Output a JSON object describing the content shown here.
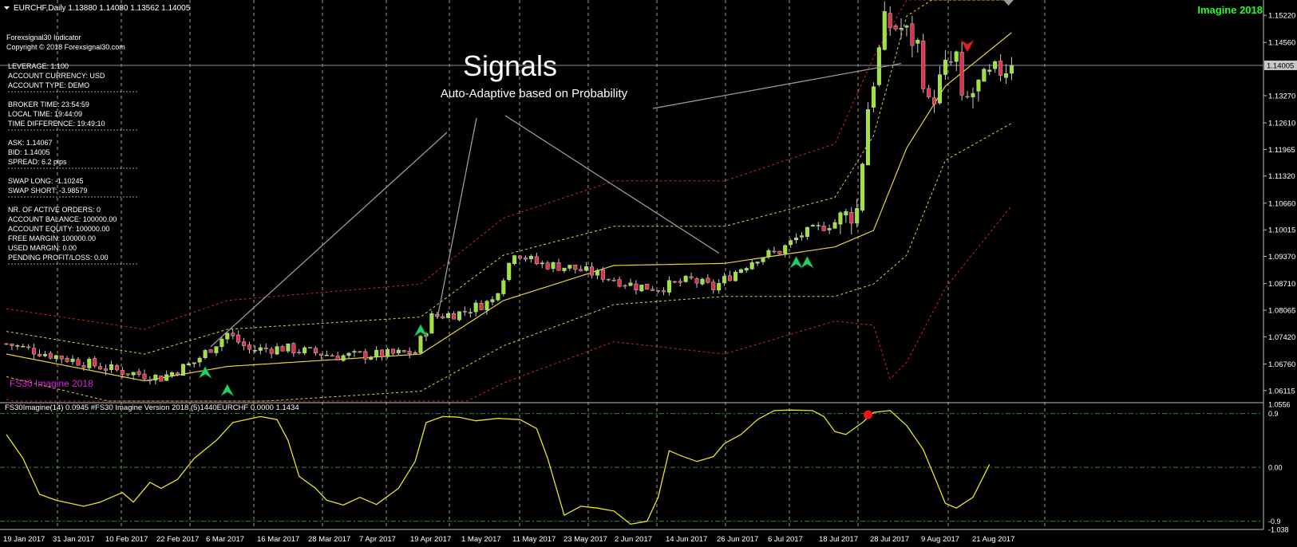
{
  "colors": {
    "background": "#000000",
    "grid": "#c8c8a0",
    "bull": "#9be632",
    "bear": "#e0304a",
    "basis": "#e6d23c",
    "inner_band": "#e6d23c",
    "outer_band": "#d02020",
    "signal_up": "#20d060",
    "signal_down": "#e02020",
    "osc": "#e6e61e",
    "osc_level": "#2e8b2e",
    "annotation_line": "#9a9a9a",
    "badge": "#22ff22",
    "indicator_label": "#e020e0",
    "price_marker_bg": "#c8c8c8"
  },
  "header": {
    "symbol": "EURCHF,Daily",
    "ohlc": "1.13880 1.14080 1.13562 1.14005",
    "badge": "Imagine 2018"
  },
  "info_panel": {
    "title": "Forexsignal30 Indicator",
    "copyright": "Copyright © 2018 Forexsignal30.com",
    "groups": [
      [
        "LEVERAGE:   1:100",
        "ACCOUNT CURRENCY:   USD",
        "ACCOUNT TYPE:   DEMO"
      ],
      [
        "BROKER TIME:   23:54:59",
        "LOCAL TIME:   19:44:09",
        "TIME DIFFERENCE:   19:49:10"
      ],
      [
        "ASK:   1.14067",
        "BID:   1.14005",
        "SPREAD:   6.2 pips"
      ],
      [
        "SWAP LONG:   -1.10245",
        "SWAP SHORT:   -3.98579"
      ],
      [
        "NR. OF ACTIVE ORDERS:   0",
        "ACCOUNT BALANCE:   100000.00",
        "ACCOUNT EQUITY:   100000.00",
        "FREE MARGIN:   100000.00",
        "USED MARGIN:   0.00",
        "PENDING PROFIT/LOSS:   0.00"
      ]
    ]
  },
  "annotation": {
    "title": "Signals",
    "subtitle": "Auto-Adaptive based on Probability"
  },
  "indicator_label": "FS30 Imagine 2018",
  "sub_header": "FS30Imagine(14) 0.0945  #FS30 Imagine Version 2018 (5)1440EURCHF 0.0000 1.1434",
  "chart_data": [
    {
      "type": "candlestick",
      "symbol": "EURCHF",
      "timeframe": "Daily",
      "ylim": [
        1.0586,
        1.1559
      ],
      "y_ticks": [
        "1.15220",
        "1.14560",
        "1.13270",
        "1.12610",
        "1.11965",
        "1.11320",
        "1.10660",
        "1.10015",
        "1.09370",
        "1.08710",
        "1.08065",
        "1.07420",
        "1.06760",
        "1.06115"
      ],
      "current_price": "1.14005",
      "x_ticks": [
        "19 Jan 2017",
        "31 Jan 2017",
        "10 Feb 2017",
        "22 Feb 2017",
        "6 Mar 2017",
        "16 Mar 2017",
        "28 Mar 2017",
        "7 Apr 2017",
        "19 Apr 2017",
        "1 May 2017",
        "11 May 2017",
        "23 May 2017",
        "2 Jun 2017",
        "14 Jun 2017",
        "26 Jun 2017",
        "6 Jul 2017",
        "18 Jul 2017",
        "28 Jul 2017",
        "9 Aug 2017",
        "21 Aug 2017"
      ],
      "anchors": [
        [
          0,
          1.0725
        ],
        [
          10,
          1.0692
        ],
        [
          20,
          1.066
        ],
        [
          28,
          1.0643
        ],
        [
          34,
          1.068
        ],
        [
          40,
          1.075
        ],
        [
          44,
          1.071
        ],
        [
          50,
          1.0715
        ],
        [
          60,
          1.0695
        ],
        [
          70,
          1.07
        ],
        [
          74,
          1.0705
        ],
        [
          77,
          1.079
        ],
        [
          82,
          1.08
        ],
        [
          88,
          1.083
        ],
        [
          92,
          1.095
        ],
        [
          96,
          1.092
        ],
        [
          102,
          1.091
        ],
        [
          108,
          1.089
        ],
        [
          114,
          1.0865
        ],
        [
          118,
          1.086
        ],
        [
          124,
          1.088
        ],
        [
          128,
          1.086
        ],
        [
          132,
          1.09
        ],
        [
          136,
          1.0935
        ],
        [
          140,
          1.095
        ],
        [
          144,
          1.099
        ],
        [
          150,
          1.102
        ],
        [
          154,
          1.105
        ],
        [
          156,
          1.13
        ],
        [
          159,
          1.15
        ],
        [
          162,
          1.149
        ],
        [
          165,
          1.145
        ],
        [
          167,
          1.13
        ],
        [
          170,
          1.139
        ],
        [
          172,
          1.142
        ],
        [
          173,
          1.13
        ],
        [
          176,
          1.135
        ],
        [
          180,
          1.139
        ],
        [
          182,
          1.14
        ]
      ],
      "bands": {
        "basis": [
          [
            0,
            1.07
          ],
          [
            25,
            1.0635
          ],
          [
            40,
            1.067
          ],
          [
            75,
            1.07
          ],
          [
            90,
            1.083
          ],
          [
            110,
            1.0915
          ],
          [
            130,
            1.092
          ],
          [
            150,
            1.096
          ],
          [
            157,
            1.1
          ],
          [
            163,
            1.12
          ],
          [
            170,
            1.135
          ],
          [
            182,
            1.148
          ]
        ],
        "inner_upper": [
          [
            0,
            1.0755
          ],
          [
            25,
            1.07
          ],
          [
            40,
            1.076
          ],
          [
            75,
            1.079
          ],
          [
            90,
            1.094
          ],
          [
            110,
            1.101
          ],
          [
            130,
            1.101
          ],
          [
            150,
            1.108
          ],
          [
            157,
            1.123
          ],
          [
            163,
            1.152
          ],
          [
            170,
            1.158
          ],
          [
            182,
            1.158
          ]
        ],
        "inner_lower": [
          [
            0,
            1.0645
          ],
          [
            25,
            1.0565
          ],
          [
            40,
            1.058
          ],
          [
            75,
            1.061
          ],
          [
            90,
            1.072
          ],
          [
            110,
            1.082
          ],
          [
            130,
            1.084
          ],
          [
            150,
            1.084
          ],
          [
            157,
            1.087
          ],
          [
            163,
            1.094
          ],
          [
            170,
            1.117
          ],
          [
            182,
            1.126
          ]
        ],
        "outer_upper": [
          [
            0,
            1.081
          ],
          [
            25,
            1.076
          ],
          [
            40,
            1.083
          ],
          [
            75,
            1.087
          ],
          [
            90,
            1.103
          ],
          [
            110,
            1.112
          ],
          [
            130,
            1.112
          ],
          [
            150,
            1.121
          ],
          [
            157,
            1.142
          ],
          [
            163,
            1.1559
          ],
          [
            182,
            1.1559
          ]
        ],
        "outer_lower": [
          [
            0,
            1.059
          ],
          [
            25,
            1.051
          ],
          [
            40,
            1.051
          ],
          [
            75,
            1.053
          ],
          [
            90,
            1.063
          ],
          [
            110,
            1.073
          ],
          [
            130,
            1.07
          ],
          [
            150,
            1.078
          ],
          [
            157,
            1.077
          ],
          [
            160,
            1.064
          ],
          [
            163,
            1.068
          ],
          [
            170,
            1.086
          ],
          [
            182,
            1.106
          ]
        ]
      },
      "signals": [
        {
          "bar": 36,
          "dir": "up",
          "price": 1.0653
        },
        {
          "bar": 40,
          "dir": "up",
          "price": 1.061
        },
        {
          "bar": 75,
          "dir": "up",
          "price": 1.0755
        },
        {
          "bar": 143,
          "dir": "up",
          "price": 1.092
        },
        {
          "bar": 145,
          "dir": "up",
          "price": 1.092
        },
        {
          "bar": 174,
          "dir": "down",
          "price": 1.145
        }
      ]
    },
    {
      "type": "line",
      "name": "FS30Imagine(14)",
      "ylim": [
        -1.038,
        1.0556
      ],
      "y_ticks": [
        "1.0556",
        "0.9",
        "0.00",
        "-0.9",
        "-1.038"
      ],
      "levels": [
        0.9,
        0.0,
        -0.9
      ],
      "points": [
        [
          0,
          0.55
        ],
        [
          3,
          0.15
        ],
        [
          6,
          -0.45
        ],
        [
          9,
          -0.55
        ],
        [
          14,
          -0.65
        ],
        [
          17,
          -0.58
        ],
        [
          21,
          -0.42
        ],
        [
          23,
          -0.58
        ],
        [
          26,
          -0.25
        ],
        [
          28,
          -0.35
        ],
        [
          31,
          -0.2
        ],
        [
          34,
          0.15
        ],
        [
          38,
          0.45
        ],
        [
          41,
          0.75
        ],
        [
          46,
          0.85
        ],
        [
          49,
          0.8
        ],
        [
          51,
          0.45
        ],
        [
          53,
          -0.15
        ],
        [
          56,
          -0.35
        ],
        [
          58,
          -0.55
        ],
        [
          61,
          -0.63
        ],
        [
          64,
          -0.5
        ],
        [
          67,
          -0.62
        ],
        [
          71,
          -0.35
        ],
        [
          74,
          0.1
        ],
        [
          76,
          0.75
        ],
        [
          79,
          0.85
        ],
        [
          82,
          0.84
        ],
        [
          85,
          0.78
        ],
        [
          89,
          0.82
        ],
        [
          93,
          0.8
        ],
        [
          96,
          0.65
        ],
        [
          98,
          0.15
        ],
        [
          101,
          -0.8
        ],
        [
          104,
          -0.65
        ],
        [
          107,
          -0.68
        ],
        [
          110,
          -0.73
        ],
        [
          113,
          -0.95
        ],
        [
          116,
          -0.9
        ],
        [
          118,
          -0.5
        ],
        [
          120,
          0.28
        ],
        [
          122,
          0.2
        ],
        [
          125,
          0.1
        ],
        [
          128,
          0.18
        ],
        [
          130,
          0.4
        ],
        [
          133,
          0.55
        ],
        [
          136,
          0.8
        ],
        [
          139,
          0.95
        ],
        [
          142,
          0.96
        ],
        [
          146,
          0.95
        ],
        [
          148,
          0.85
        ],
        [
          150,
          0.6
        ],
        [
          152,
          0.55
        ],
        [
          155,
          0.75
        ],
        [
          157,
          0.92
        ],
        [
          160,
          0.95
        ],
        [
          163,
          0.7
        ],
        [
          166,
          0.3
        ],
        [
          168,
          -0.15
        ],
        [
          170,
          -0.6
        ],
        [
          172,
          -0.68
        ],
        [
          175,
          -0.5
        ],
        [
          178,
          0.05
        ]
      ],
      "signal_dot": {
        "bar": 156,
        "value": 0.88
      }
    }
  ]
}
